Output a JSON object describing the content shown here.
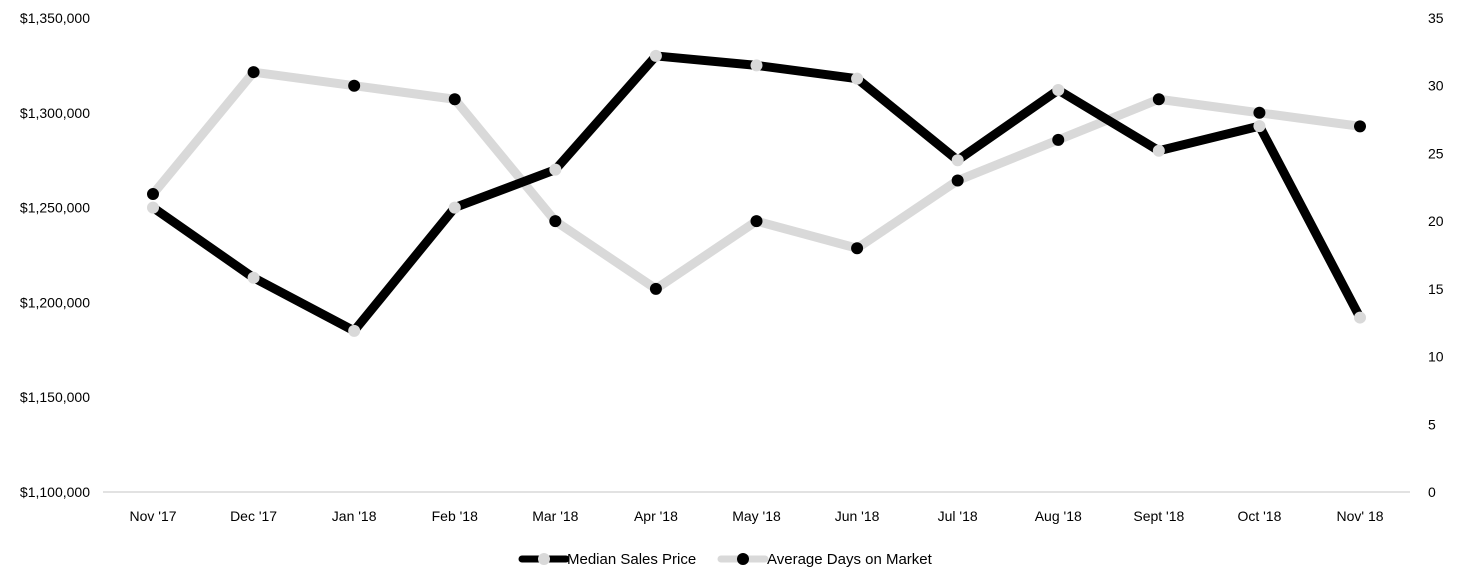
{
  "chart_data": {
    "type": "line",
    "categories": [
      "Nov '17",
      "Dec '17",
      "Jan '18",
      "Feb '18",
      "Mar '18",
      "Apr '18",
      "May '18",
      "Jun  '18",
      "Jul '18",
      "Aug '18",
      "Sept '18",
      "Oct '18",
      "Nov' 18"
    ],
    "series": [
      {
        "name": "Median Sales Price",
        "axis": "left",
        "line_color": "#000000",
        "marker_color": "#d9d9d9",
        "values": [
          1250000,
          1213000,
          1185000,
          1250000,
          1270000,
          1330000,
          1325000,
          1318000,
          1275000,
          1312000,
          1280000,
          1293000,
          1192000
        ]
      },
      {
        "name": "Average Days on Market",
        "axis": "right",
        "line_color": "#d9d9d9",
        "marker_color": "#000000",
        "values": [
          22,
          31,
          30,
          29,
          20,
          15,
          20,
          18,
          23,
          26,
          29,
          28,
          27
        ]
      }
    ],
    "y_left": {
      "min": 1100000,
      "max": 1350000,
      "step": 50000,
      "tick_labels": [
        "$1,100,000",
        "$1,150,000",
        "$1,200,000",
        "$1,250,000",
        "$1,300,000",
        "$1,350,000"
      ]
    },
    "y_right": {
      "min": 0,
      "max": 35,
      "step": 5,
      "tick_labels": [
        "0",
        "5",
        "10",
        "15",
        "20",
        "25",
        "30",
        "35"
      ]
    },
    "gridlines": false,
    "legend_position": "bottom-center"
  }
}
